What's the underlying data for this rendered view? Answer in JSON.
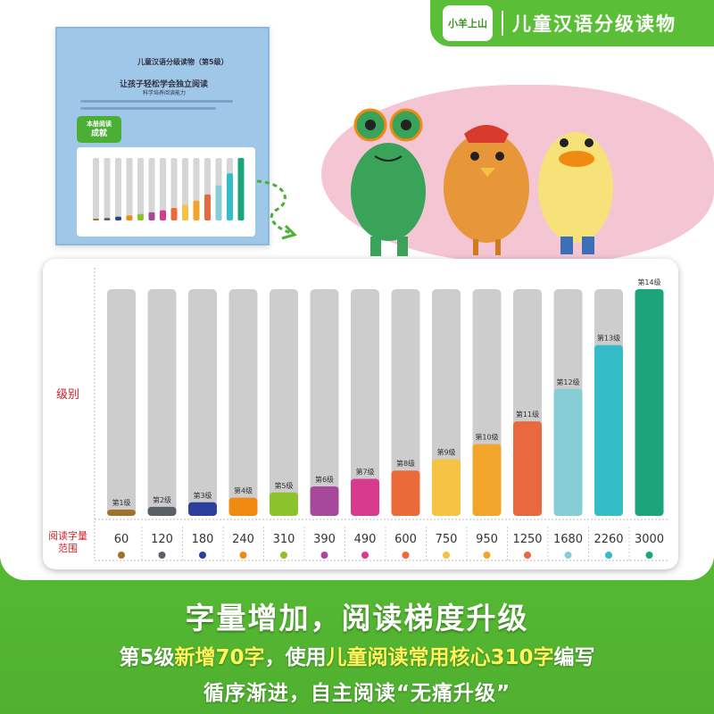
{
  "brand": {
    "logo_text": "小羊上山",
    "title": "儿童汉语分级读物"
  },
  "thumbnail": {
    "series_label": "儿童汉语分级读物（第5级）",
    "title": "让孩子轻松学会独立阅读",
    "subtitle": "科学培养阅读能力",
    "badge_top": "本册阅读",
    "badge_bottom": "成就"
  },
  "chart_data": {
    "type": "bar",
    "ylabel": "级别",
    "xlabel": "阅读字量范围",
    "categories": [
      "第1级",
      "第2级",
      "第3级",
      "第4级",
      "第5级",
      "第6级",
      "第7级",
      "第8级",
      "第9级",
      "第10级",
      "第11级",
      "第12级",
      "第13级",
      "第14级"
    ],
    "values": [
      60,
      120,
      180,
      240,
      310,
      390,
      490,
      600,
      750,
      950,
      1250,
      1680,
      2260,
      3000
    ],
    "ylim": [
      0,
      3000
    ],
    "colors": [
      "#a4712c",
      "#5a5f68",
      "#2b3f9e",
      "#f08a10",
      "#8cc22b",
      "#a6489b",
      "#d83a8e",
      "#ea6a3a",
      "#f6c244",
      "#f2a52b",
      "#e8693f",
      "#87cdd6",
      "#35bcc9",
      "#1ca57b"
    ],
    "track_color": "#cdcdcd",
    "grid": false,
    "legend": "none"
  },
  "headline": "字量增加，阅读梯度升级",
  "line2": {
    "part1": "第5级",
    "part2": "新增70字",
    "part3": "，使用",
    "part4": "儿童阅读常用核心310字",
    "part5": "编写"
  },
  "line3": "循序渐进，自主阅读“无痛升级”"
}
